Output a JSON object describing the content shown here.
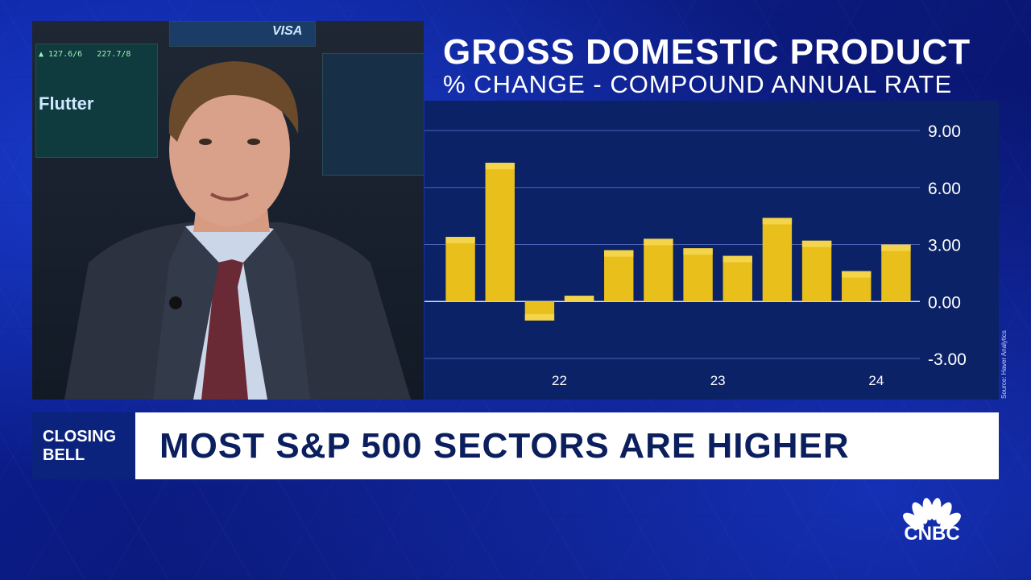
{
  "broadcast": {
    "tag_line1": "CLOSING",
    "tag_line2": "BELL",
    "headline": "MOST S&P 500 SECTORS ARE HIGHER",
    "network": "CNBC"
  },
  "video": {
    "screen_brand": "Flutter",
    "sign_text": "VISA"
  },
  "chart_data": {
    "type": "bar",
    "title": "GROSS DOMESTIC PRODUCT",
    "subtitle": "% CHANGE - COMPOUND ANNUAL RATE",
    "source": "Source: Haver Analytics",
    "values": [
      3.4,
      7.3,
      -1.0,
      0.3,
      2.7,
      3.3,
      2.8,
      2.4,
      4.4,
      3.2,
      1.6,
      3.0
    ],
    "x_tick_labels": [
      {
        "label": "22",
        "at_index": 2.5
      },
      {
        "label": "23",
        "at_index": 6.5
      },
      {
        "label": "24",
        "at_index": 10.5
      }
    ],
    "y_ticks": [
      "9.00",
      "6.00",
      "3.00",
      "0.00",
      "-3.00"
    ],
    "y_tick_values": [
      9,
      6,
      3,
      0,
      -3
    ],
    "ylim": [
      -3,
      9
    ],
    "grid": true,
    "colors": {
      "bar": "#e9bf1c",
      "bar_top": "#f3d44a",
      "panel": "#0c2266",
      "grid": "#4a62b8",
      "axis": "#ffffff"
    }
  }
}
